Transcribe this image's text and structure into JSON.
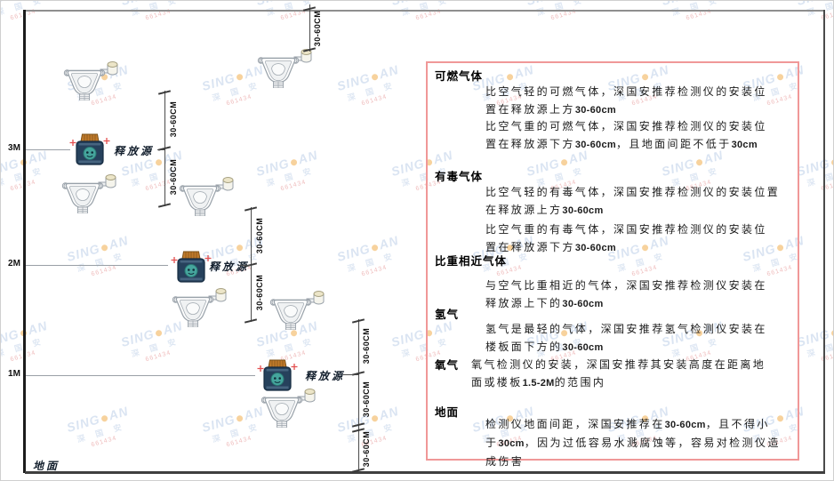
{
  "diagram": {
    "height_labels": [
      "3M",
      "2M",
      "1M"
    ],
    "ground_label": "地面",
    "source_label": "释放源",
    "dim_label": "30-60CM"
  },
  "panel": {
    "sections": [
      {
        "heading": "可燃气体",
        "paras": [
          "比空气轻的可燃气体，深国安推荐检测仪的安装位置在释放源上方30-60cm",
          "比空气重的可燃气体，深国安推荐检测仪的安装位置在释放源下方30-60cm，且地面间距不低于30cm"
        ]
      },
      {
        "heading": "有毒气体",
        "paras": [
          "比空气轻的有毒气体，深国安推荐检测仪的安装位置在释放源上方30-60cm",
          "比空气重的有毒气体，深国安推荐检测仪的安装位置在释放源下方30-60cm"
        ]
      },
      {
        "heading": "比重相近气体",
        "paras": [
          "与空气比重相近的气体，深国安推荐检测仪安装在释放源上下的30-60cm"
        ]
      },
      {
        "heading": "氢气",
        "paras": [
          "氢气是最轻的气体，深国安推荐氢气检测仪安装在楼板面下方的30-60cm"
        ]
      },
      {
        "heading": "氧气",
        "paras": [
          "氧气检测仪的安装，深国安推荐其安装高度在距离地面或楼板1.5-2M的范围内"
        ]
      },
      {
        "heading": "地面",
        "paras": [
          "检测仪地面间距，深国安推荐在30-60cm，且不得小于30cm，因为过低容易水溅腐蚀等，容易对检测仪造成伤害"
        ]
      }
    ]
  },
  "watermark": {
    "brand_left": "SING",
    "brand_right": "AN",
    "cn": "深 国 安",
    "code": "661434"
  },
  "colors": {
    "panel_border": "#f09898",
    "watermark_blue": "#b7cbe6",
    "watermark_dot_orange": "#f0a73e",
    "watermark_code_red": "#e07b7b",
    "source_body_navy": "#26415c",
    "source_cap_orange": "#c07a2b",
    "source_face_teal": "#45a59d",
    "sparkle_red": "#e34f4f",
    "detector_outline_gray": "#9aa2aa"
  }
}
